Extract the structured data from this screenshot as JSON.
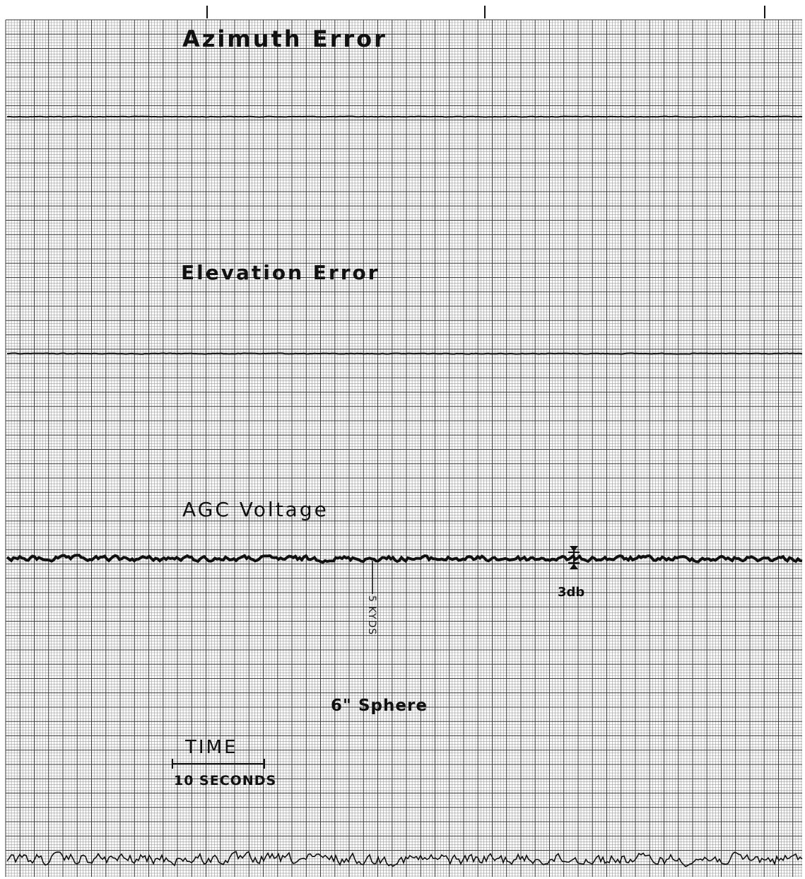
{
  "chart_data": {
    "type": "line",
    "traces": [
      {
        "name": "Azimuth Error",
        "noise": 0.4
      },
      {
        "name": "Elevation Error",
        "noise": 0.4
      },
      {
        "name": "AGC Voltage",
        "noise": 3.2
      },
      {
        "name": "",
        "noise": 7
      }
    ],
    "annotations": {
      "agc_step": "3db",
      "handwritten_mark": "5 KYDS",
      "target": "6\" Sphere",
      "time_label": "TIME",
      "time_scale": "10 SECONDS"
    },
    "grid": true
  },
  "colors": {
    "paper": "#ffffff",
    "grid_fine": "#9a9a9a",
    "grid_major": "#3a3a3a",
    "trace": "#111111"
  }
}
